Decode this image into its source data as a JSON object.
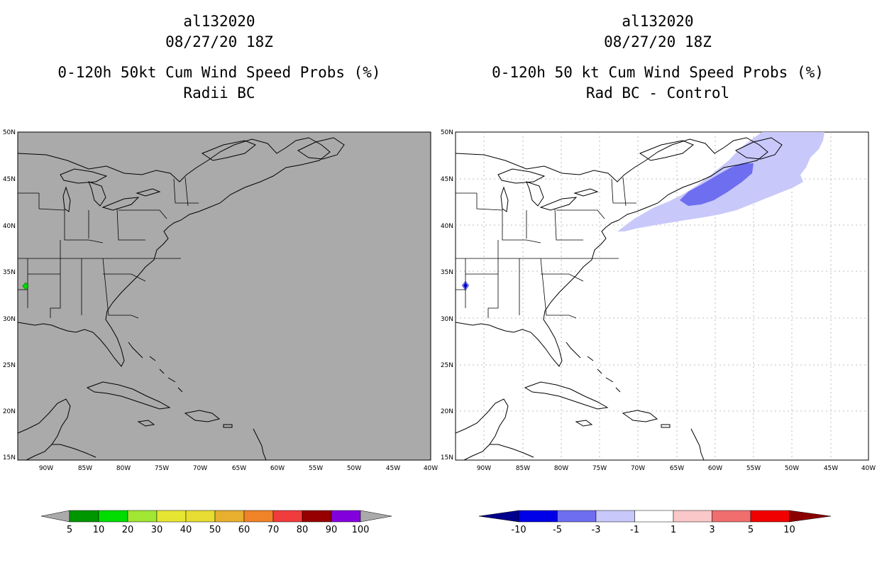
{
  "panels": [
    {
      "title_lines": [
        "al132020",
        "08/27/20 18Z",
        "0-120h 50kt Cum Wind Speed Probs (%)",
        "Radii BC"
      ],
      "background": "#aaaaaa",
      "colorbar": {
        "labels": [
          "5",
          "10",
          "20",
          "30",
          "40",
          "50",
          "60",
          "70",
          "80",
          "90",
          "100"
        ],
        "colors": [
          "#009600",
          "#00dc00",
          "#a0e632",
          "#e6e632",
          "#e6dc32",
          "#e6af2d",
          "#f08228",
          "#f03c3c",
          "#960000",
          "#8200dc"
        ],
        "end_color": "#aaaaaa"
      }
    },
    {
      "title_lines": [
        "al132020",
        "08/27/20 18Z",
        "0-120h 50 kt Cum Wind Speed Probs (%)",
        "Rad BC - Control"
      ],
      "background": "#ffffff",
      "colorbar": {
        "labels": [
          "-10",
          "-5",
          "-3",
          "-1",
          "1",
          "3",
          "5",
          "10"
        ],
        "colors": [
          "#0000e6",
          "#6e6ef0",
          "#c8c8fa",
          "#ffffff",
          "#fac8c8",
          "#f06e6e",
          "#f00000"
        ],
        "left_end": "#00008c",
        "right_end": "#8c0000"
      }
    }
  ],
  "axes": {
    "lat_labels": [
      "50N",
      "45N",
      "40N",
      "35N",
      "30N",
      "25N",
      "20N",
      "15N"
    ],
    "lon_labels": [
      "90W",
      "85W",
      "80W",
      "75W",
      "70W",
      "65W",
      "60W",
      "55W",
      "50W",
      "45W",
      "40W"
    ]
  }
}
